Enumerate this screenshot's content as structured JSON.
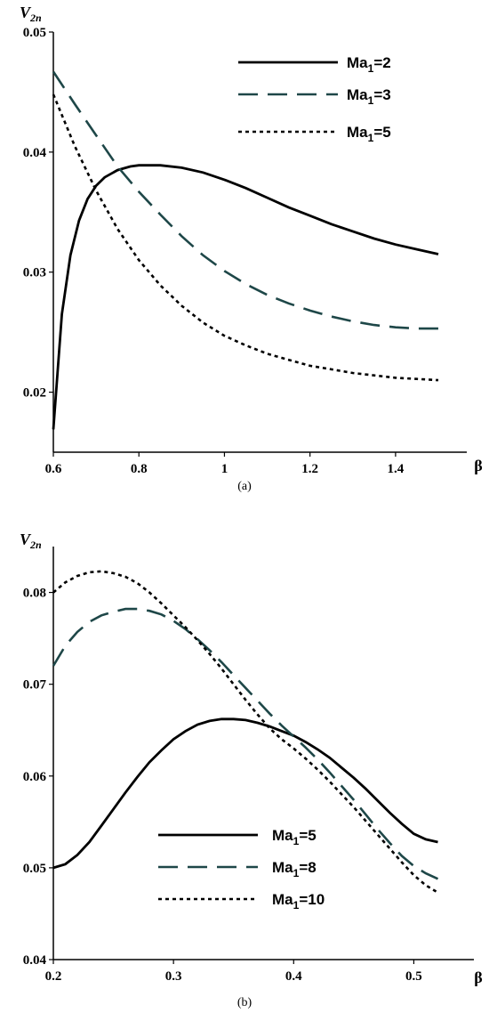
{
  "chart_data": [
    {
      "type": "line",
      "panel": "(a)",
      "title": "",
      "xlabel": "β",
      "ylabel": "V",
      "ylabel_sub": "2n",
      "xlim": [
        0.6,
        1.5
      ],
      "ylim": [
        0.015,
        0.05
      ],
      "xticks": [
        "0.6",
        "0.8",
        "1",
        "1.2",
        "1.4"
      ],
      "yticks": [
        "0.02",
        "0.03",
        "0.04",
        "0.05"
      ],
      "grid": false,
      "legend_position": "top-right",
      "series": [
        {
          "name": "Ma",
          "name_sub": "1",
          "name_suffix": "=2",
          "style": "solid",
          "color": "#000000",
          "x": [
            0.6,
            0.62,
            0.64,
            0.66,
            0.68,
            0.7,
            0.72,
            0.75,
            0.78,
            0.8,
            0.82,
            0.85,
            0.9,
            0.95,
            1.0,
            1.05,
            1.1,
            1.15,
            1.2,
            1.25,
            1.3,
            1.35,
            1.4,
            1.45,
            1.5
          ],
          "y": [
            0.0169,
            0.0265,
            0.0314,
            0.0343,
            0.0361,
            0.0372,
            0.0379,
            0.0385,
            0.0388,
            0.0389,
            0.0389,
            0.0389,
            0.0387,
            0.0383,
            0.0377,
            0.037,
            0.0362,
            0.0354,
            0.0347,
            0.034,
            0.0334,
            0.0328,
            0.0323,
            0.0319,
            0.0315
          ]
        },
        {
          "name": "Ma",
          "name_sub": "1",
          "name_suffix": "=3",
          "style": "dashed",
          "color": "#1e4748",
          "x": [
            0.6,
            0.65,
            0.7,
            0.75,
            0.8,
            0.85,
            0.9,
            0.95,
            1.0,
            1.05,
            1.1,
            1.15,
            1.2,
            1.25,
            1.3,
            1.35,
            1.4,
            1.45,
            1.5
          ],
          "y": [
            0.0467,
            0.044,
            0.0414,
            0.0388,
            0.0367,
            0.0348,
            0.033,
            0.0314,
            0.0301,
            0.029,
            0.0281,
            0.0274,
            0.0268,
            0.0263,
            0.0259,
            0.0256,
            0.0254,
            0.0253,
            0.0253
          ]
        },
        {
          "name": "Ma",
          "name_sub": "1",
          "name_suffix": "=5",
          "style": "dotted",
          "color": "#000000",
          "x": [
            0.6,
            0.65,
            0.7,
            0.75,
            0.8,
            0.85,
            0.9,
            0.95,
            1.0,
            1.05,
            1.1,
            1.15,
            1.2,
            1.25,
            1.3,
            1.35,
            1.4,
            1.45,
            1.5
          ],
          "y": [
            0.0448,
            0.0405,
            0.0368,
            0.0336,
            0.031,
            0.0289,
            0.0272,
            0.0258,
            0.0247,
            0.0239,
            0.0232,
            0.0227,
            0.0222,
            0.0219,
            0.0216,
            0.0214,
            0.0212,
            0.0211,
            0.021
          ]
        }
      ]
    },
    {
      "type": "line",
      "panel": "(b)",
      "title": "",
      "xlabel": "β",
      "ylabel": "V",
      "ylabel_sub": "2n",
      "xlim": [
        0.2,
        0.55
      ],
      "ylim": [
        0.04,
        0.085
      ],
      "xticks": [
        "0.2",
        "0.3",
        "0.4",
        "0.5"
      ],
      "yticks": [
        "0.04",
        "0.05",
        "0.06",
        "0.07",
        "0.08"
      ],
      "grid": false,
      "legend_position": "bottom-center",
      "series": [
        {
          "name": "Ma",
          "name_sub": "1",
          "name_suffix": "=5",
          "style": "solid",
          "color": "#000000",
          "x": [
            0.2,
            0.21,
            0.22,
            0.23,
            0.24,
            0.25,
            0.26,
            0.27,
            0.28,
            0.29,
            0.3,
            0.31,
            0.32,
            0.33,
            0.34,
            0.35,
            0.36,
            0.37,
            0.38,
            0.39,
            0.4,
            0.41,
            0.42,
            0.43,
            0.44,
            0.45,
            0.46,
            0.47,
            0.48,
            0.49,
            0.5,
            0.51,
            0.52
          ],
          "y": [
            0.05,
            0.0504,
            0.0514,
            0.0528,
            0.0546,
            0.0564,
            0.0582,
            0.0599,
            0.0615,
            0.0628,
            0.064,
            0.0649,
            0.0656,
            0.066,
            0.0662,
            0.0662,
            0.0661,
            0.0658,
            0.0654,
            0.0649,
            0.0644,
            0.0637,
            0.0629,
            0.062,
            0.0609,
            0.0598,
            0.0586,
            0.0573,
            0.056,
            0.0548,
            0.0537,
            0.0531,
            0.0528
          ]
        },
        {
          "name": "Ma",
          "name_sub": "1",
          "name_suffix": "=8",
          "style": "dashed",
          "color": "#1e4748",
          "x": [
            0.2,
            0.21,
            0.22,
            0.23,
            0.24,
            0.25,
            0.26,
            0.27,
            0.28,
            0.29,
            0.3,
            0.31,
            0.32,
            0.33,
            0.34,
            0.35,
            0.36,
            0.37,
            0.38,
            0.39,
            0.4,
            0.41,
            0.42,
            0.43,
            0.44,
            0.45,
            0.46,
            0.47,
            0.48,
            0.49,
            0.5,
            0.51,
            0.52
          ],
          "y": [
            0.072,
            0.0742,
            0.0757,
            0.0768,
            0.0775,
            0.0779,
            0.0782,
            0.0782,
            0.078,
            0.0776,
            0.0769,
            0.076,
            0.0749,
            0.0737,
            0.0724,
            0.071,
            0.0696,
            0.0682,
            0.0668,
            0.0655,
            0.0643,
            0.0631,
            0.0618,
            0.0604,
            0.0589,
            0.0574,
            0.0558,
            0.0542,
            0.0527,
            0.0513,
            0.0502,
            0.0494,
            0.0488
          ]
        },
        {
          "name": "Ma",
          "name_sub": "1",
          "name_suffix": "=10",
          "style": "dotted",
          "color": "#000000",
          "x": [
            0.2,
            0.21,
            0.22,
            0.23,
            0.24,
            0.25,
            0.26,
            0.27,
            0.28,
            0.29,
            0.3,
            0.31,
            0.32,
            0.33,
            0.34,
            0.35,
            0.36,
            0.37,
            0.38,
            0.39,
            0.4,
            0.41,
            0.42,
            0.43,
            0.44,
            0.45,
            0.46,
            0.47,
            0.48,
            0.49,
            0.5,
            0.51,
            0.52
          ],
          "y": [
            0.08,
            0.0811,
            0.0818,
            0.0822,
            0.0823,
            0.0821,
            0.0817,
            0.081,
            0.08,
            0.0788,
            0.0775,
            0.0762,
            0.0748,
            0.0733,
            0.0717,
            0.07,
            0.0683,
            0.0667,
            0.0652,
            0.064,
            0.063,
            0.0619,
            0.0607,
            0.0594,
            0.058,
            0.0566,
            0.0551,
            0.0536,
            0.0521,
            0.0506,
            0.0492,
            0.0481,
            0.0473
          ]
        }
      ]
    }
  ]
}
